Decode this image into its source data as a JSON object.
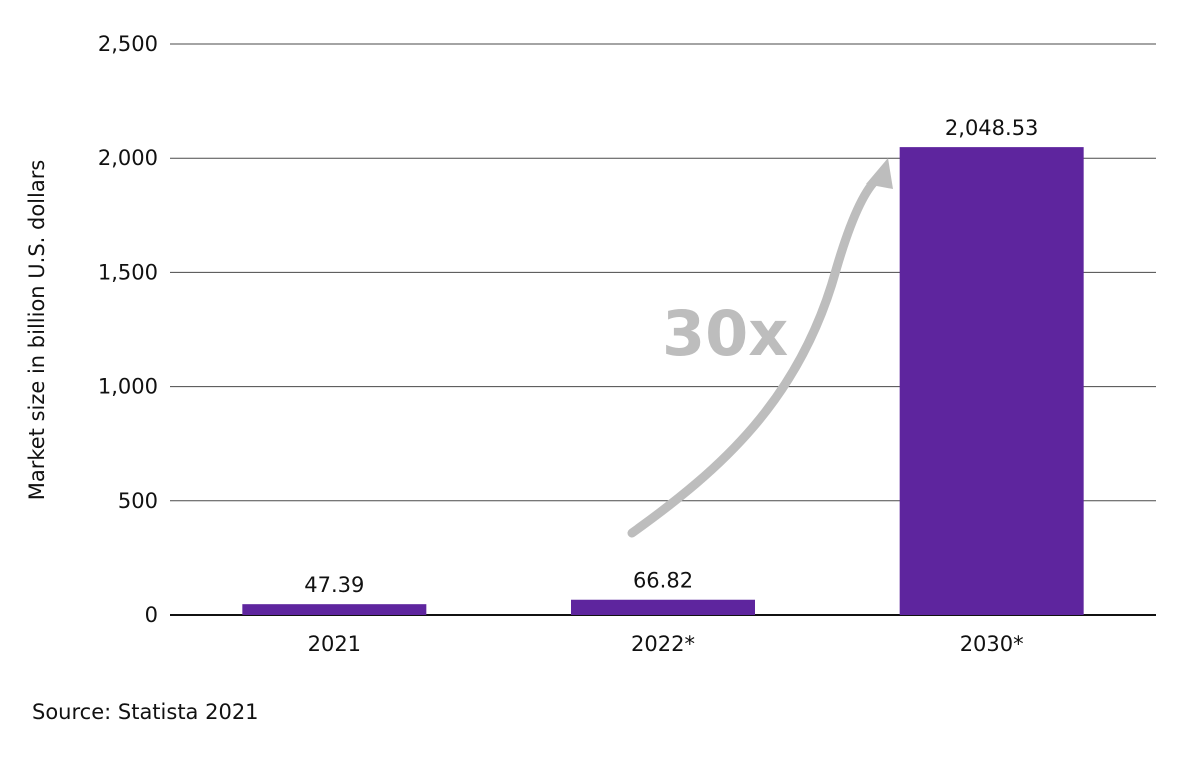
{
  "chart_data": {
    "type": "bar",
    "categories": [
      "2021",
      "2022*",
      "2030*"
    ],
    "values": [
      47.39,
      66.82,
      2048.53
    ],
    "value_labels": [
      "47.39",
      "66.82",
      "2,048.53"
    ],
    "title": "",
    "xlabel": "",
    "ylabel": "Market size in billion U.S. dollars",
    "ylim": [
      0,
      2500
    ],
    "yticks": [
      0,
      500,
      1000,
      1500,
      2000,
      2500
    ],
    "ytick_labels": [
      "0",
      "500",
      "1,000",
      "1,500",
      "2,000",
      "2,500"
    ],
    "grid": true,
    "legend": "none",
    "bar_color": "#5e259e",
    "annotation": {
      "text": "30x",
      "color": "#bdbdbd"
    }
  },
  "source": "Source: Statista 2021"
}
